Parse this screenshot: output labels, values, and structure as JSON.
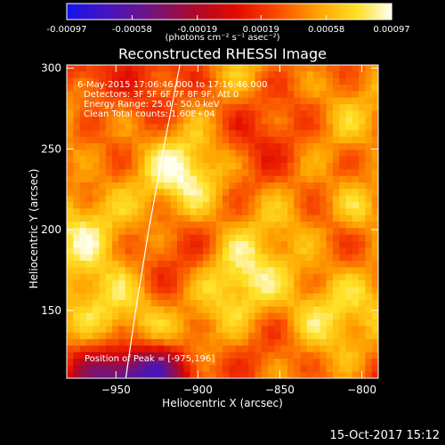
{
  "colorbar": {
    "tick_labels": [
      "-0.00097",
      "-0.00058",
      "-0.00019",
      "0.00019",
      "0.00058",
      "0.00097"
    ],
    "unit_label": "(photons cm⁻² s⁻¹ asec⁻²)"
  },
  "chart_data": {
    "type": "heatmap",
    "title": "Reconstructed RHESSI Image",
    "xlabel": "Heliocentric X (arcsec)",
    "ylabel": "Heliocentric Y (arcsec)",
    "xlim": [
      -980,
      -790
    ],
    "ylim": [
      108,
      302
    ],
    "x_ticks": [
      -950,
      -900,
      -850,
      -800
    ],
    "x_tick_labels": [
      "−950",
      "−900",
      "−850",
      "−800"
    ],
    "y_ticks": [
      150,
      200,
      250,
      300
    ],
    "y_tick_labels": [
      "150",
      "200",
      "250",
      "300"
    ],
    "colorbar_range": [
      -0.00097,
      0.00097
    ],
    "peak": [
      -975,
      196
    ],
    "limb_curve": [
      [
        -944,
        108
      ],
      [
        -938,
        150
      ],
      [
        -930,
        200
      ],
      [
        -921,
        250
      ],
      [
        -911,
        302
      ]
    ],
    "annotations": [
      "6-May-2015 17:06:46.000 to 17:16:46.000",
      "Detectors: 3F 5F 6F 7F 8F 9F, Att 0",
      "Energy Range: 25.0 - 50.0 keV",
      "Clean     Total counts: 1.60E+04"
    ],
    "peak_label": "Position of Peak = [-975,196]"
  },
  "footer": {
    "date": "15-Oct-2017 15:12"
  }
}
